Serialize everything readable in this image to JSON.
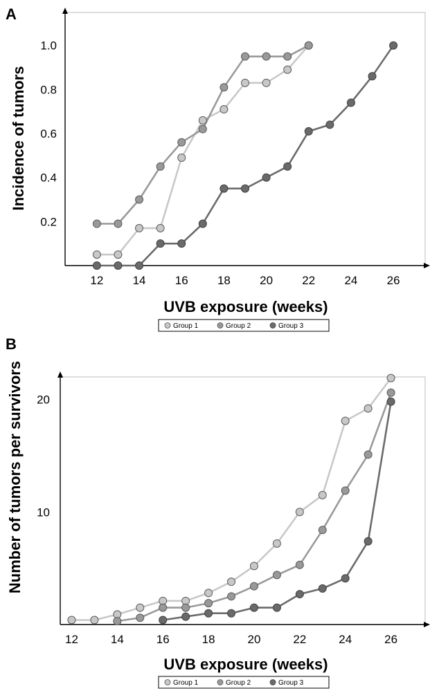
{
  "chart_data": [
    {
      "panel": "A",
      "type": "line",
      "xlabel": "UVB exposure (weeks)",
      "ylabel": "Incidence of tumors",
      "xlim": [
        10.5,
        27.5
      ],
      "ylim": [
        0,
        1.15
      ],
      "xticks": [
        "12",
        "14",
        "16",
        "18",
        "20",
        "22",
        "24",
        "26"
      ],
      "yticks": [
        "0.2",
        "0.4",
        "0.6",
        "0.8",
        "1.0"
      ],
      "legend_position": "bottom",
      "series": [
        {
          "name": "Group 1",
          "color": "#c8c8c8",
          "x": [
            12,
            13,
            14,
            15,
            16,
            17,
            18,
            19,
            20,
            21,
            22
          ],
          "y": [
            0.05,
            0.05,
            0.17,
            0.17,
            0.49,
            0.66,
            0.71,
            0.83,
            0.83,
            0.89,
            1.0
          ]
        },
        {
          "name": "Group 2",
          "color": "#999999",
          "x": [
            12,
            13,
            14,
            15,
            16,
            17,
            18,
            19,
            20,
            21,
            22
          ],
          "y": [
            0.19,
            0.19,
            0.3,
            0.45,
            0.56,
            0.62,
            0.81,
            0.95,
            0.95,
            0.95,
            1.0
          ]
        },
        {
          "name": "Group 3",
          "color": "#6a6a6a",
          "x": [
            12,
            13,
            14,
            15,
            16,
            17,
            18,
            19,
            20,
            21,
            22,
            23,
            24,
            25,
            26
          ],
          "y": [
            0.0,
            0.0,
            0.0,
            0.1,
            0.1,
            0.19,
            0.35,
            0.35,
            0.4,
            0.45,
            0.61,
            0.64,
            0.74,
            0.86,
            1.0
          ]
        }
      ]
    },
    {
      "panel": "B",
      "type": "line",
      "xlabel": "UVB exposure (weeks)",
      "ylabel": "Number of tumors per survivors",
      "xlim": [
        11.5,
        27.5
      ],
      "ylim": [
        0,
        22
      ],
      "xticks": [
        "12",
        "14",
        "16",
        "18",
        "20",
        "22",
        "24",
        "26"
      ],
      "yticks": [
        "10",
        "20"
      ],
      "legend_position": "bottom",
      "series": [
        {
          "name": "Group 1",
          "color": "#c8c8c8",
          "x": [
            12,
            13,
            14,
            15,
            16,
            17,
            18,
            19,
            20,
            21,
            22,
            23,
            24,
            25,
            26
          ],
          "y": [
            0.4,
            0.4,
            0.9,
            1.5,
            2.1,
            2.1,
            2.8,
            3.8,
            5.2,
            7.2,
            10.0,
            11.5,
            18.1,
            19.2,
            21.9
          ]
        },
        {
          "name": "Group 2",
          "color": "#999999",
          "x": [
            14,
            15,
            16,
            17,
            18,
            19,
            20,
            21,
            22,
            23,
            24,
            25,
            26
          ],
          "y": [
            0.3,
            0.6,
            1.5,
            1.5,
            1.9,
            2.5,
            3.4,
            4.4,
            5.3,
            8.4,
            11.9,
            15.1,
            20.6
          ]
        },
        {
          "name": "Group 3",
          "color": "#6a6a6a",
          "x": [
            16,
            17,
            18,
            19,
            20,
            21,
            22,
            23,
            24,
            25,
            26
          ],
          "y": [
            0.4,
            0.7,
            1.0,
            1.0,
            1.5,
            1.5,
            2.7,
            3.2,
            4.1,
            7.4,
            19.8
          ]
        }
      ]
    }
  ],
  "legends": [
    {
      "items": [
        "Group 1",
        "Group 2",
        "Group 3"
      ]
    },
    {
      "items": [
        "Group 1",
        "Group 2",
        "Group 3"
      ]
    }
  ]
}
